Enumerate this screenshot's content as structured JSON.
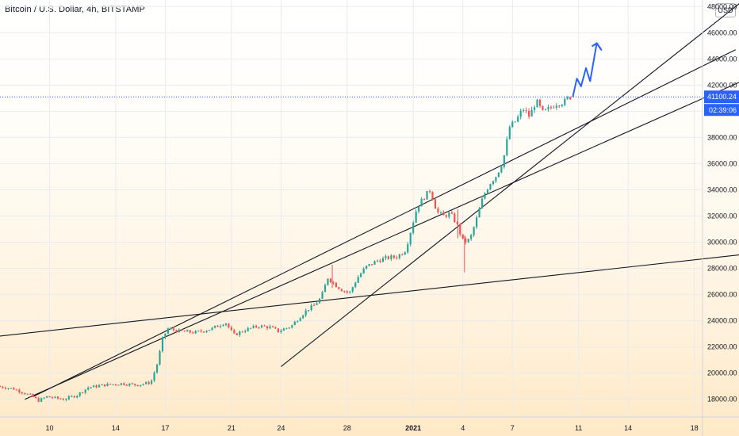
{
  "header": {
    "title": "Bitcoin / U.S. Dollar, 4h, BITSTAMP",
    "currency_button": "USD"
  },
  "price_tags": {
    "last_price": "41100.24",
    "countdown": "02:39:06",
    "color": "#2962ff"
  },
  "colors": {
    "up": "#26a69a",
    "down": "#ef5350",
    "projection": "#2962ff",
    "trendline": "#131722",
    "grid": "#e9ebef"
  },
  "chart_data": {
    "type": "candlestick",
    "title": "Bitcoin / U.S. Dollar, 4h, BITSTAMP",
    "x_axis": {
      "ticks": [
        "10",
        "14",
        "17",
        "21",
        "24",
        "28",
        "2021",
        "4",
        "7",
        "11",
        "14",
        "18"
      ],
      "tick_days": [
        10,
        14,
        17,
        21,
        24,
        28,
        32,
        35,
        38,
        42,
        45,
        49
      ],
      "range_days": [
        7,
        49.5
      ]
    },
    "y_axis": {
      "ticks": [
        18000,
        20000,
        22000,
        24000,
        26000,
        28000,
        30000,
        32000,
        34000,
        36000,
        38000,
        40000,
        42000,
        44000,
        46000,
        48000
      ],
      "tick_labels": [
        "18000.00",
        "20000.00",
        "22000.00",
        "24000.00",
        "26000.00",
        "28000.00",
        "30000.00",
        "32000.00",
        "34000.00",
        "36000.00",
        "38000.00",
        "40000.00",
        "42000.00",
        "44000.00",
        "46000.00",
        "48000.00"
      ],
      "range": [
        16650,
        48500
      ]
    },
    "last_price": 41100.24,
    "price_path": [
      [
        7.0,
        19000
      ],
      [
        8.0,
        18800
      ],
      [
        9.0,
        18300
      ],
      [
        9.5,
        17900
      ],
      [
        10.0,
        18200
      ],
      [
        11.0,
        18000
      ],
      [
        11.8,
        18300
      ],
      [
        12.5,
        18900
      ],
      [
        13.5,
        19100
      ],
      [
        14.5,
        19200
      ],
      [
        15.5,
        19100
      ],
      [
        16.3,
        19300
      ],
      [
        16.7,
        20800
      ],
      [
        17.0,
        22600
      ],
      [
        17.3,
        23400
      ],
      [
        18.0,
        23200
      ],
      [
        19.0,
        23100
      ],
      [
        20.0,
        23400
      ],
      [
        20.8,
        23900
      ],
      [
        21.3,
        22900
      ],
      [
        22.0,
        23300
      ],
      [
        22.8,
        23600
      ],
      [
        23.5,
        23500
      ],
      [
        24.0,
        23200
      ],
      [
        24.8,
        23600
      ],
      [
        25.3,
        24300
      ],
      [
        25.8,
        24900
      ],
      [
        26.2,
        25200
      ],
      [
        26.6,
        25800
      ],
      [
        27.0,
        27300
      ],
      [
        27.4,
        26800
      ],
      [
        27.8,
        26400
      ],
      [
        28.3,
        26100
      ],
      [
        28.8,
        27300
      ],
      [
        29.3,
        28100
      ],
      [
        30.0,
        28600
      ],
      [
        30.6,
        28800
      ],
      [
        31.2,
        28900
      ],
      [
        31.7,
        29400
      ],
      [
        32.0,
        30800
      ],
      [
        32.4,
        32700
      ],
      [
        32.8,
        33400
      ],
      [
        33.2,
        34000
      ],
      [
        33.6,
        32300
      ],
      [
        34.0,
        32000
      ],
      [
        34.4,
        32200
      ],
      [
        34.8,
        31400
      ],
      [
        35.2,
        30000
      ],
      [
        35.6,
        30200
      ],
      [
        36.0,
        31800
      ],
      [
        36.4,
        33500
      ],
      [
        36.8,
        34500
      ],
      [
        37.2,
        35100
      ],
      [
        37.6,
        36200
      ],
      [
        38.0,
        38800
      ],
      [
        38.4,
        39300
      ],
      [
        38.8,
        40200
      ],
      [
        39.2,
        39600
      ],
      [
        39.6,
        40800
      ],
      [
        40.0,
        39900
      ],
      [
        40.4,
        40200
      ],
      [
        40.8,
        40600
      ],
      [
        41.3,
        40700
      ],
      [
        41.6,
        41100
      ]
    ],
    "projection_path": [
      [
        41.65,
        41100
      ],
      [
        41.9,
        42500
      ],
      [
        42.15,
        41900
      ],
      [
        42.45,
        43300
      ],
      [
        42.7,
        42300
      ],
      [
        43.1,
        45200
      ],
      [
        43.4,
        44650
      ]
    ],
    "trendlines": [
      {
        "from": [
          9.0,
          18200
        ],
        "to": [
          51.5,
          44700
        ]
      },
      {
        "from": [
          1.0,
          22000
        ],
        "to": [
          58.0,
          29900
        ]
      },
      {
        "from": [
          8.5,
          18000
        ],
        "to": [
          53.3,
          43100
        ]
      },
      {
        "from": [
          24.0,
          20500
        ],
        "to": [
          51.8,
          48300
        ]
      }
    ]
  }
}
